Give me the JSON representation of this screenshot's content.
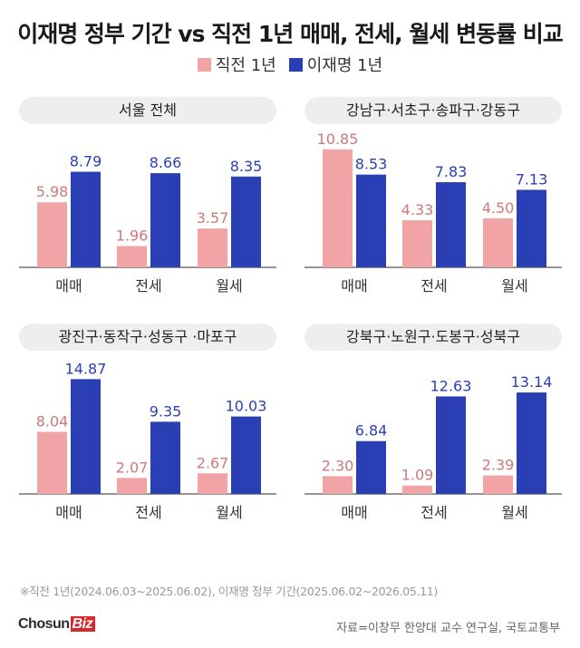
{
  "title": "이재명 정부 기간 vs 직전 1년 매매, 전세, 월세 변동률 비교",
  "legend": [
    {
      "label": "직전 1년",
      "color": "#F2A3A5"
    },
    {
      "label": "이재명 1년",
      "color": "#2B3FB4"
    }
  ],
  "chart_data": [
    {
      "type": "bar",
      "title": "서울 전체",
      "categories": [
        "매매",
        "전세",
        "월세"
      ],
      "series": [
        {
          "name": "직전 1년",
          "values": [
            5.98,
            1.96,
            3.57
          ]
        },
        {
          "name": "이재명 1년",
          "values": [
            8.79,
            8.66,
            8.35
          ]
        }
      ],
      "ylim": [
        0,
        11.5
      ]
    },
    {
      "type": "bar",
      "title": "강남구·서초구·송파구·강동구",
      "categories": [
        "매매",
        "전세",
        "월세"
      ],
      "series": [
        {
          "name": "직전 1년",
          "values": [
            10.85,
            4.33,
            4.5
          ]
        },
        {
          "name": "이재명 1년",
          "values": [
            8.53,
            7.83,
            7.13
          ]
        }
      ],
      "ylim": [
        0,
        11.5
      ]
    },
    {
      "type": "bar",
      "title": "광진구·동작구·성동구 ·마포구",
      "categories": [
        "매매",
        "전세",
        "월세"
      ],
      "series": [
        {
          "name": "직전 1년",
          "values": [
            8.04,
            2.07,
            2.67
          ]
        },
        {
          "name": "이재명 1년",
          "values": [
            14.87,
            9.35,
            10.03
          ]
        }
      ],
      "ylim": [
        0,
        16.2
      ]
    },
    {
      "type": "bar",
      "title": "강북구·노원구·도봉구·성북구",
      "categories": [
        "매매",
        "전세",
        "월세"
      ],
      "series": [
        {
          "name": "직전 1년",
          "values": [
            2.3,
            1.09,
            2.39
          ]
        },
        {
          "name": "이재명 1년",
          "values": [
            6.84,
            12.63,
            13.14
          ]
        }
      ],
      "ylim": [
        0,
        16.2
      ]
    }
  ],
  "footnote": "※직전 1년(2024.06.03~2025.06.02), 이재명 정부 기간(2025.06.02~2026.05.11)",
  "logo": {
    "part1": "Chosun",
    "part2": "Biz"
  },
  "source": "자료=이창무 한양대 교수 연구실, 국토교통부"
}
